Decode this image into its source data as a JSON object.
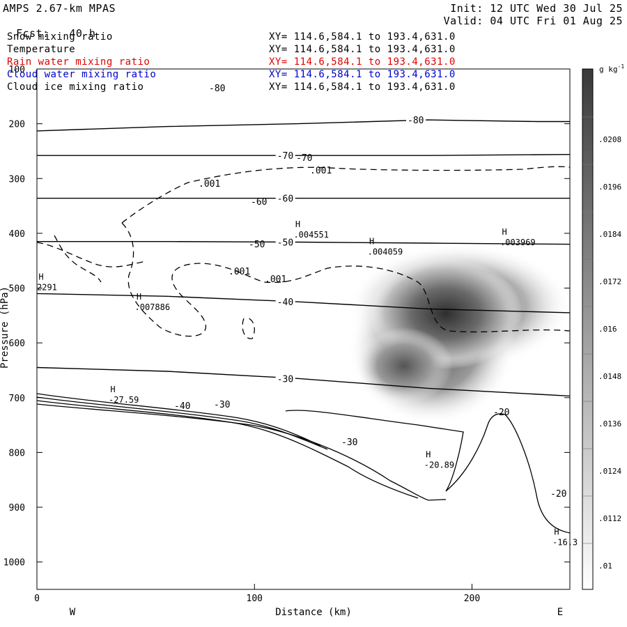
{
  "header": {
    "model": "AMPS 2.67-km MPAS",
    "fcst_label": "Fcst:",
    "fcst_value": "40 h",
    "init": "Init: 12 UTC Wed 30 Jul 25",
    "valid": "Valid: 04 UTC Fri 01 Aug 25"
  },
  "fields": [
    {
      "name": "Snow mixing ratio",
      "xy": "XY= 114.6,584.1 to 193.4,631.0",
      "color": "#000000"
    },
    {
      "name": "Temperature",
      "xy": "XY= 114.6,584.1 to 193.4,631.0",
      "color": "#000000"
    },
    {
      "name": "Rain water mixing ratio",
      "xy": "XY= 114.6,584.1 to 193.4,631.0",
      "color": "#e00000"
    },
    {
      "name": "Cloud water mixing ratio",
      "xy": "XY= 114.6,584.1 to 193.4,631.0",
      "color": "#0000c8"
    },
    {
      "name": "Cloud ice mixing ratio",
      "xy": "XY= 114.6,584.1 to 193.4,631.0",
      "color": "#000000"
    }
  ],
  "chart_data": {
    "type": "cross-section contour",
    "xlabel": "Distance (km)",
    "ylabel": "Pressure (hPa)",
    "xlim": [
      0,
      245
    ],
    "ylim": [
      1050,
      100
    ],
    "x_ticks": [
      "0",
      "100",
      "200"
    ],
    "y_ticks": [
      "100",
      "200",
      "300",
      "400",
      "500",
      "600",
      "700",
      "800",
      "900",
      "1000"
    ],
    "x_ends": {
      "left": "W",
      "right": "E"
    },
    "colorbar": {
      "unit": "g kg",
      "unit_exp": "-1",
      "levels": [
        ".0208",
        ".0196",
        ".0184",
        ".0172",
        ".016",
        ".0148",
        ".0136",
        ".0124",
        ".0112",
        ".01"
      ]
    },
    "temperature_isotherms": [
      {
        "label": "-80",
        "points": [
          [
            0,
            213
          ],
          [
            60,
            205
          ],
          [
            120,
            200
          ],
          [
            180,
            193
          ],
          [
            230,
            196
          ],
          [
            245,
            196
          ]
        ]
      },
      {
        "label": "-70",
        "points": [
          [
            0,
            258
          ],
          [
            60,
            258
          ],
          [
            120,
            258
          ],
          [
            180,
            258
          ],
          [
            245,
            256
          ]
        ]
      },
      {
        "label": "-60",
        "points": [
          [
            0,
            336
          ],
          [
            60,
            336
          ],
          [
            120,
            336
          ],
          [
            180,
            336
          ],
          [
            245,
            336
          ]
        ]
      },
      {
        "label": "-50",
        "points": [
          [
            0,
            415
          ],
          [
            60,
            415
          ],
          [
            120,
            416
          ],
          [
            180,
            418
          ],
          [
            245,
            420
          ]
        ]
      },
      {
        "label": "-40",
        "points": [
          [
            0,
            510
          ],
          [
            60,
            515
          ],
          [
            120,
            525
          ],
          [
            180,
            538
          ],
          [
            245,
            545
          ]
        ]
      },
      {
        "label": "-30",
        "points": [
          [
            0,
            645
          ],
          [
            60,
            652
          ],
          [
            120,
            665
          ],
          [
            180,
            683
          ],
          [
            245,
            697
          ]
        ]
      }
    ],
    "temperature_labels_extra": [
      "-80",
      "-70",
      "-60",
      "-50",
      "-40",
      "-40",
      "-30",
      "-30",
      "-30",
      "-20",
      "-20"
    ],
    "extrema": [
      {
        "mark": "H",
        "value": ".004551",
        "x": 118,
        "p": 394
      },
      {
        "mark": "H",
        "value": ".004059",
        "x": 152,
        "p": 425
      },
      {
        "mark": "H",
        "value": ".003969",
        "x": 213,
        "p": 408
      },
      {
        "mark": "H",
        "value": ".007886",
        "x": 45,
        "p": 526
      },
      {
        "mark": "H",
        "value": "2291",
        "x": 0,
        "p": 490
      },
      {
        "mark": "H",
        "value": "-27.59",
        "x": 33,
        "p": 695
      },
      {
        "mark": "H",
        "value": "-20.89",
        "x": 178,
        "p": 814
      },
      {
        "mark": "H",
        "value": "-16.3",
        "x": 237,
        "p": 955
      }
    ],
    "cloud_ice_contour_label": ".001",
    "max_shading": {
      "x": 190,
      "p": 555
    }
  }
}
